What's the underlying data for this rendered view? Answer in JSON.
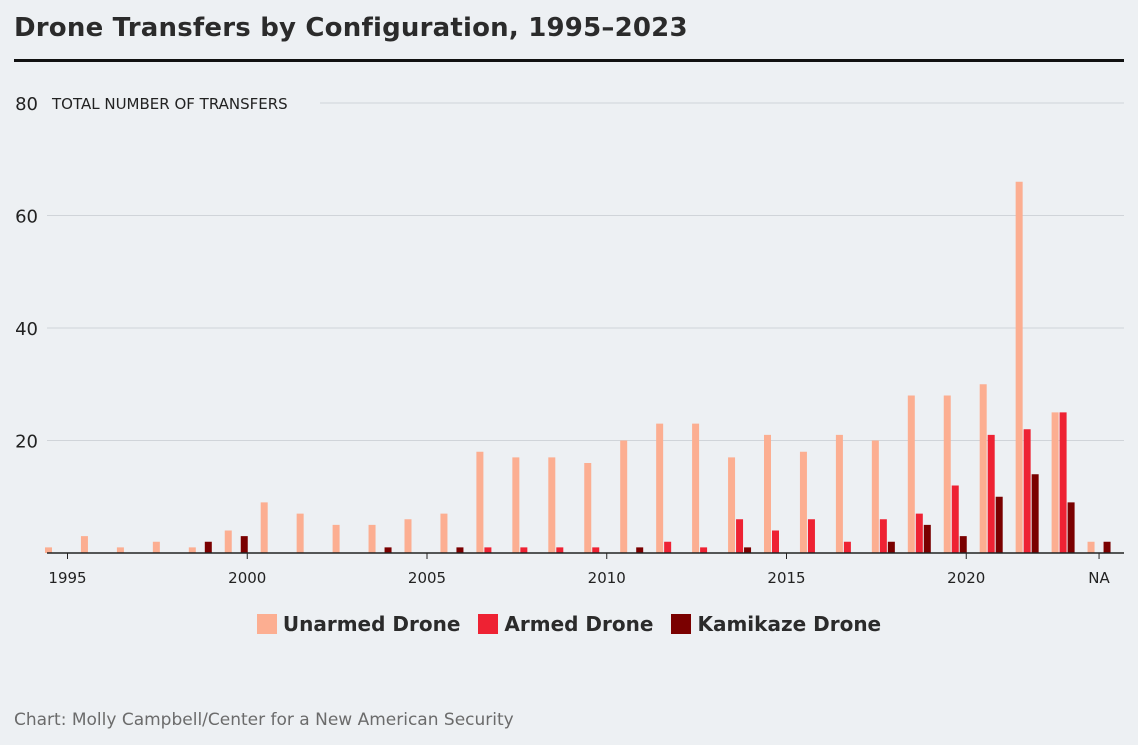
{
  "header": {
    "title": "Drone Transfers by Configuration, 1995–2023"
  },
  "source": "Chart: Molly Campbell/Center for a New American Security",
  "colors": {
    "unarmed": "#fcae91",
    "armed": "#ee2233",
    "kamikaze": "#7a0000",
    "grid": "#d0d4d9",
    "axis": "#222222"
  },
  "chart_data": {
    "type": "bar",
    "title": "Drone Transfers by Configuration, 1995–2023",
    "ylabel": "TOTAL NUMBER OF TRANSFERS",
    "xlabel": "",
    "ylim": [
      0,
      80
    ],
    "yticks": [
      20,
      40,
      60,
      80
    ],
    "grid": true,
    "legend_position": "bottom",
    "categories": [
      "1995",
      "1996",
      "1997",
      "1998",
      "1999",
      "2000",
      "2001",
      "2002",
      "2003",
      "2004",
      "2005",
      "2006",
      "2007",
      "2008",
      "2009",
      "2010",
      "2011",
      "2012",
      "2013",
      "2014",
      "2015",
      "2016",
      "2017",
      "2018",
      "2019",
      "2020",
      "2021",
      "2022",
      "2023",
      "NA"
    ],
    "x_tick_labels": [
      "1995",
      "2000",
      "2005",
      "2010",
      "2015",
      "2020",
      "NA"
    ],
    "series": [
      {
        "name": "Unarmed Drone",
        "color_key": "unarmed",
        "values": [
          1,
          3,
          1,
          2,
          1,
          4,
          9,
          7,
          5,
          5,
          6,
          7,
          18,
          17,
          17,
          16,
          20,
          23,
          23,
          17,
          21,
          18,
          21,
          20,
          28,
          28,
          30,
          66,
          25,
          2
        ]
      },
      {
        "name": "Armed Drone",
        "color_key": "armed",
        "values": [
          0,
          0,
          0,
          0,
          0,
          0,
          0,
          0,
          0,
          0,
          0,
          0,
          1,
          1,
          1,
          1,
          0,
          2,
          1,
          6,
          4,
          6,
          2,
          6,
          7,
          12,
          21,
          22,
          25,
          0
        ]
      },
      {
        "name": "Kamikaze Drone",
        "color_key": "kamikaze",
        "values": [
          0,
          0,
          0,
          0,
          2,
          3,
          0,
          0,
          0,
          1,
          0,
          1,
          0,
          0,
          0,
          0,
          1,
          0,
          0,
          1,
          0,
          0,
          0,
          2,
          5,
          3,
          10,
          14,
          9,
          2
        ]
      }
    ]
  }
}
